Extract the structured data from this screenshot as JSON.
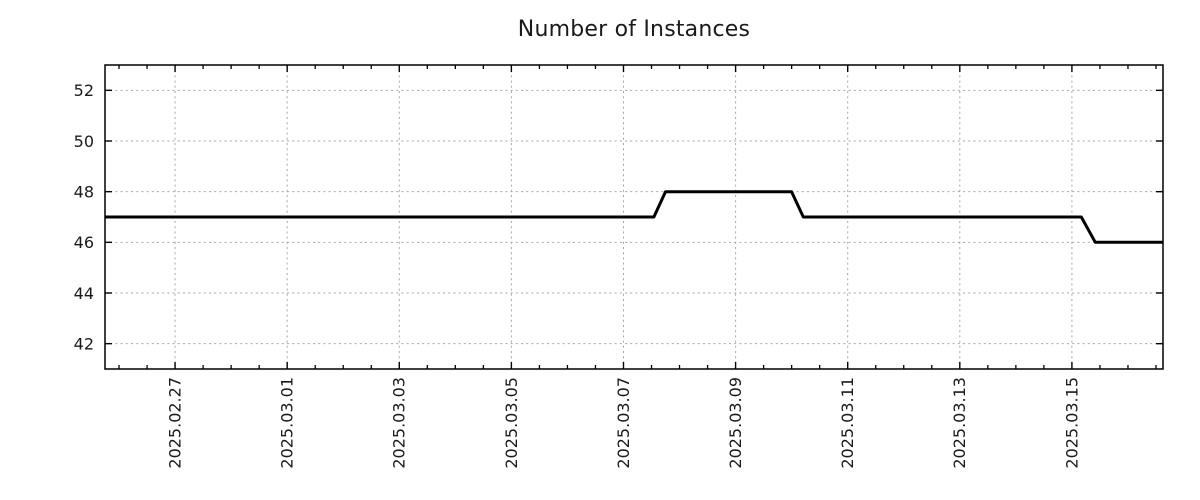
{
  "chart_data": {
    "type": "line",
    "title": "Number of Instances",
    "legend": "none",
    "style": {
      "background": "#ffffff",
      "axis_color": "#000000",
      "text_color": "#1a1a1a",
      "grid_color": "#a6a6a6",
      "grid_style": "dashed"
    },
    "x_axis": {
      "kind": "time",
      "min": "2025-02-25T18:00:00",
      "max": "2025-03-16T15:00:00",
      "minor_tick_hours": 12,
      "tick_label_rotation_deg": 90,
      "major_ticks": [
        {
          "value": "2025-02-27T00:00:00",
          "label": "2025.02.27"
        },
        {
          "value": "2025-03-01T00:00:00",
          "label": "2025.03.01"
        },
        {
          "value": "2025-03-03T00:00:00",
          "label": "2025.03.03"
        },
        {
          "value": "2025-03-05T00:00:00",
          "label": "2025.03.05"
        },
        {
          "value": "2025-03-07T00:00:00",
          "label": "2025.03.07"
        },
        {
          "value": "2025-03-09T00:00:00",
          "label": "2025.03.09"
        },
        {
          "value": "2025-03-11T00:00:00",
          "label": "2025.03.11"
        },
        {
          "value": "2025-03-13T00:00:00",
          "label": "2025.03.13"
        },
        {
          "value": "2025-03-15T00:00:00",
          "label": "2025.03.15"
        }
      ]
    },
    "y_axis": {
      "min": 41,
      "max": 53,
      "major_ticks": [
        {
          "value": 42,
          "label": "42"
        },
        {
          "value": 44,
          "label": "44"
        },
        {
          "value": 46,
          "label": "46"
        },
        {
          "value": 48,
          "label": "48"
        },
        {
          "value": 50,
          "label": "50"
        },
        {
          "value": 52,
          "label": "52"
        }
      ]
    },
    "series": [
      {
        "name": "instances",
        "color": "#000000",
        "width": 3,
        "points": [
          [
            "2025-02-25T18:00:00",
            47
          ],
          [
            "2025-03-07T13:00:00",
            47
          ],
          [
            "2025-03-07T18:00:00",
            48
          ],
          [
            "2025-03-10T00:00:00",
            48
          ],
          [
            "2025-03-10T05:00:00",
            47
          ],
          [
            "2025-03-15T04:00:00",
            47
          ],
          [
            "2025-03-15T10:00:00",
            46
          ],
          [
            "2025-03-16T15:00:00",
            46
          ]
        ]
      }
    ]
  }
}
